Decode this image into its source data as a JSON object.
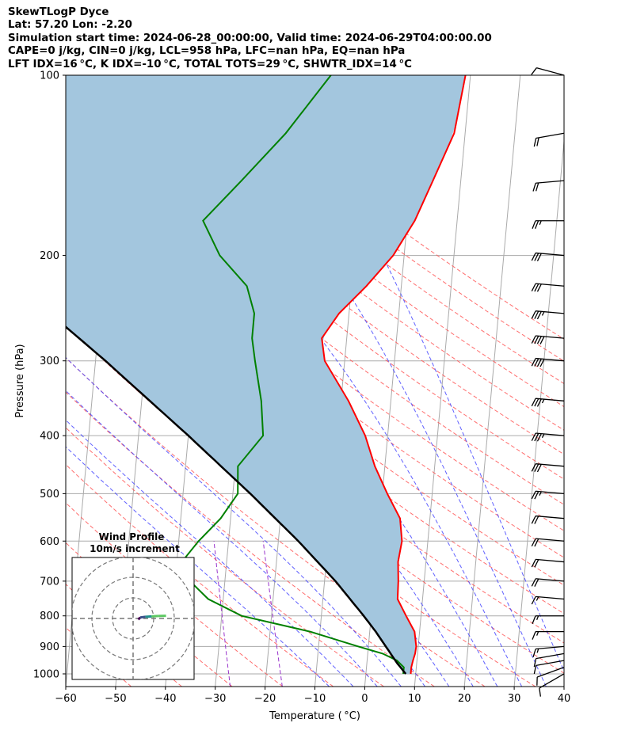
{
  "header": {
    "line1": "SkewTLogP Dyce",
    "line2": "Lat: 57.20   Lon: -2.20",
    "line3": "Simulation start time: 2024-06-28_00:00:00, Valid time: 2024-06-29T04:00:00.00",
    "line4": "CAPE=0 j/kg, CIN=0 j/kg, LCL=958 hPa, LFC=nan hPa, EQ=nan hPa",
    "line5": "LFT IDX=16 °C, K IDX=-10 °C, TOTAL TOTS=29 °C, SHWTR_IDX=14 °C"
  },
  "colors": {
    "temperature": "#ff0000",
    "dewpoint": "#008000",
    "parcel": "#000000",
    "shade": "#a3c6de",
    "dry_adiabat": "#ff5555",
    "moist_adiabat": "#4444ff",
    "mixing_ratio": "#9933cc",
    "isotherm": "#aaaaaa"
  },
  "chart_data": {
    "type": "skew-t",
    "xlabel": "Temperature ( °C)",
    "ylabel": "Pressure (hPa)",
    "xlim": [
      -60,
      40
    ],
    "ylim": [
      1050,
      100
    ],
    "grid": true,
    "x_ticks": [
      "−60",
      "−50",
      "−40",
      "−30",
      "−20",
      "−10",
      "0",
      "10",
      "20",
      "30",
      "40"
    ],
    "x_tick_values": [
      -60,
      -50,
      -40,
      -30,
      -20,
      -10,
      0,
      10,
      20,
      30,
      40
    ],
    "y_ticks": [
      "1000",
      "900",
      "800",
      "700",
      "600",
      "500",
      "400",
      "300",
      "200",
      "100"
    ],
    "y_tick_values": [
      1000,
      900,
      800,
      700,
      600,
      500,
      400,
      300,
      200,
      100
    ],
    "pressure": [
      1000,
      975,
      950,
      925,
      900,
      850,
      800,
      750,
      700,
      650,
      600,
      550,
      500,
      450,
      400,
      350,
      300,
      275,
      250,
      225,
      200,
      175,
      150,
      125,
      100
    ],
    "temperature": [
      9.0,
      9.0,
      9.2,
      9.5,
      9.6,
      9.0,
      7.0,
      5.0,
      4.8,
      4.4,
      4.8,
      4.0,
      1.0,
      -2.0,
      -4.5,
      -8.5,
      -14.0,
      -15.0,
      -12.0,
      -7.0,
      -2.2,
      1.5,
      4.4,
      7.8,
      9.0
    ],
    "dewpoint": [
      7.5,
      7.5,
      6.0,
      3.0,
      -2.0,
      -12.0,
      -26.0,
      -33.0,
      -37.0,
      -39.0,
      -36.0,
      -32.0,
      -29.0,
      -29.5,
      -25.0,
      -26.0,
      -28.0,
      -29.0,
      -29.0,
      -31.0,
      -37.0,
      -41.0,
      -34.0,
      -26.0,
      -18.0
    ],
    "parcel": {
      "pressure": [
        1000,
        958,
        900,
        850,
        800,
        700,
        600,
        500,
        400,
        300,
        250,
        200,
        150,
        100
      ],
      "temperature": [
        8.0,
        6.0,
        3.5,
        1.2,
        -1.5,
        -7.8,
        -16.0,
        -26.5,
        -40.0,
        -58.0,
        -70.0,
        -83.0,
        -100.0,
        -123.0
      ]
    },
    "wind_barb_pressure": [
      1000,
      975,
      950,
      925,
      900,
      850,
      800,
      750,
      700,
      650,
      600,
      550,
      500,
      450,
      400,
      350,
      300,
      275,
      250,
      225,
      200,
      175,
      150,
      125,
      100
    ],
    "wind_speed_kt": [
      10,
      10,
      10,
      10,
      15,
      15,
      15,
      15,
      20,
      20,
      20,
      20,
      25,
      30,
      35,
      35,
      40,
      40,
      35,
      30,
      30,
      25,
      20,
      20,
      10
    ],
    "wind_direction_deg": [
      240,
      250,
      260,
      260,
      265,
      270,
      270,
      275,
      275,
      275,
      275,
      275,
      275,
      275,
      275,
      275,
      275,
      275,
      275,
      275,
      275,
      270,
      265,
      260,
      285
    ],
    "hodograph": {
      "title": "Wind Profile",
      "subtitle": "10m/s increment",
      "rings_ms": [
        10,
        20,
        30
      ],
      "u": [
        2.5,
        3.5,
        6.0,
        9.0,
        12.0,
        16.0
      ],
      "v": [
        -0.5,
        0.5,
        0.8,
        1.0,
        1.2,
        1.3
      ]
    }
  }
}
